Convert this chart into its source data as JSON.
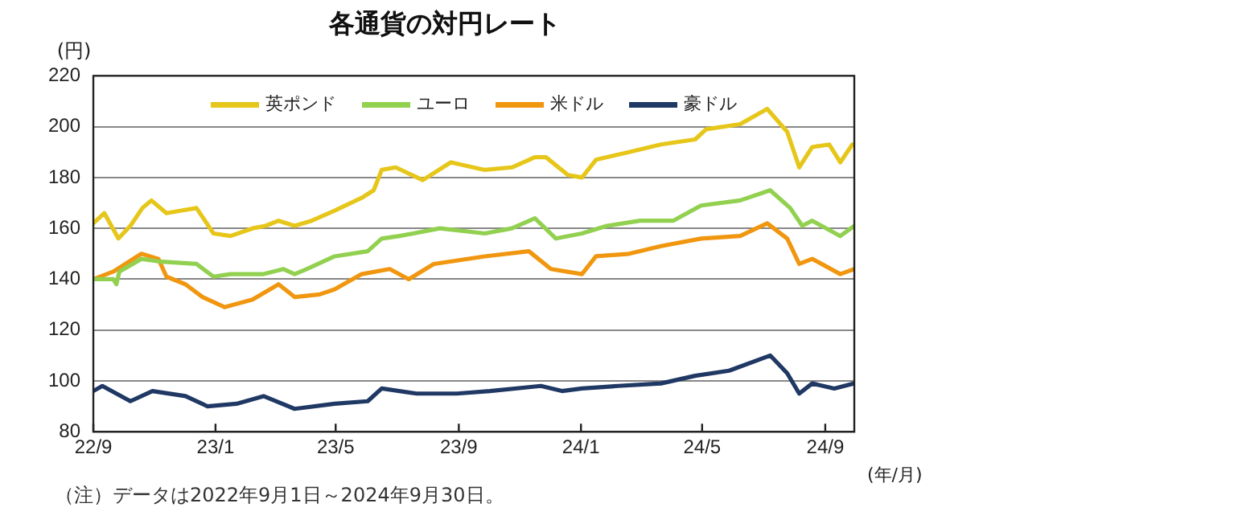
{
  "chart_data": {
    "type": "line",
    "title": "各通貨の対円レート",
    "ylabel": "(円)",
    "xlabel": "(年/月)",
    "annotations": [
      "（注）データは2022年9月1日～2024年9月30日。"
    ],
    "xlim": [
      "2022-09-01",
      "2024-09-30"
    ],
    "xticks": [
      {
        "value": "2022-09-01",
        "label": "22/9"
      },
      {
        "value": "2023-01-01",
        "label": "23/1"
      },
      {
        "value": "2023-05-01",
        "label": "23/5"
      },
      {
        "value": "2023-09-01",
        "label": "23/9"
      },
      {
        "value": "2024-01-01",
        "label": "24/1"
      },
      {
        "value": "2024-05-01",
        "label": "24/5"
      },
      {
        "value": "2024-09-01",
        "label": "24/9"
      }
    ],
    "ylim": [
      80,
      220
    ],
    "yticks": [
      80,
      100,
      120,
      140,
      160,
      180,
      200,
      220
    ],
    "grid": "y",
    "legend": "top",
    "line_style": "solid",
    "marker": "none",
    "series": [
      {
        "name": "英ポンド",
        "color": "#e6c619",
        "x": [
          "2022-09-01",
          "2022-09-12",
          "2022-09-26",
          "2022-10-08",
          "2022-10-20",
          "2022-10-29",
          "2022-11-13",
          "2022-11-28",
          "2022-12-13",
          "2022-12-30",
          "2023-01-16",
          "2023-02-07",
          "2023-02-20",
          "2023-03-05",
          "2023-03-21",
          "2023-04-07",
          "2023-04-30",
          "2023-05-27",
          "2023-06-08",
          "2023-06-16",
          "2023-06-30",
          "2023-07-27",
          "2023-08-24",
          "2023-09-27",
          "2023-10-24",
          "2023-11-16",
          "2023-11-27",
          "2023-12-19",
          "2024-01-02",
          "2024-01-16",
          "2024-02-18",
          "2024-03-21",
          "2024-04-24",
          "2024-05-05",
          "2024-06-08",
          "2024-07-05",
          "2024-07-25",
          "2024-08-06",
          "2024-08-19",
          "2024-09-05",
          "2024-09-16",
          "2024-09-28",
          "2024-09-30"
        ],
        "values": [
          162,
          166,
          156,
          161,
          168,
          171,
          166,
          167,
          168,
          158,
          157,
          160,
          161,
          163,
          161,
          163,
          167,
          172,
          175,
          183,
          184,
          179,
          186,
          183,
          184,
          188,
          188,
          181,
          180,
          187,
          190,
          193,
          195,
          199,
          201,
          207,
          198,
          184,
          192,
          193,
          186,
          193,
          193
        ]
      },
      {
        "name": "ユーロ",
        "color": "#92d050",
        "x": [
          "2022-09-01",
          "2022-09-21",
          "2022-09-24",
          "2022-09-27",
          "2022-10-19",
          "2022-11-05",
          "2022-12-13",
          "2022-12-30",
          "2023-01-16",
          "2023-02-18",
          "2023-03-10",
          "2023-03-21",
          "2023-04-02",
          "2023-04-30",
          "2023-06-02",
          "2023-06-16",
          "2023-07-04",
          "2023-08-13",
          "2023-09-27",
          "2023-10-24",
          "2023-11-16",
          "2023-12-07",
          "2024-01-02",
          "2024-01-27",
          "2024-02-29",
          "2024-04-02",
          "2024-04-30",
          "2024-06-08",
          "2024-07-08",
          "2024-07-28",
          "2024-08-09",
          "2024-08-19",
          "2024-09-16",
          "2024-09-30"
        ],
        "values": [
          140,
          140,
          138,
          143,
          148,
          147,
          146,
          141,
          142,
          142,
          144,
          142,
          144,
          149,
          151,
          156,
          157,
          160,
          158,
          160,
          164,
          156,
          158,
          161,
          163,
          163,
          169,
          171,
          175,
          168,
          161,
          163,
          157,
          161
        ]
      },
      {
        "name": "米ドル",
        "color": "#f0960f",
        "x": [
          "2022-09-01",
          "2022-09-21",
          "2022-10-19",
          "2022-11-05",
          "2022-11-13",
          "2022-12-02",
          "2022-12-19",
          "2023-01-10",
          "2023-02-07",
          "2023-03-05",
          "2023-03-21",
          "2023-04-15",
          "2023-04-30",
          "2023-05-27",
          "2023-06-24",
          "2023-07-13",
          "2023-08-07",
          "2023-09-27",
          "2023-11-10",
          "2023-12-02",
          "2024-01-02",
          "2024-01-16",
          "2024-02-18",
          "2024-03-21",
          "2024-04-30",
          "2024-06-08",
          "2024-07-05",
          "2024-07-25",
          "2024-08-06",
          "2024-08-19",
          "2024-09-16",
          "2024-09-30"
        ],
        "values": [
          140,
          143,
          150,
          148,
          141,
          138,
          133,
          129,
          132,
          138,
          133,
          134,
          136,
          142,
          144,
          140,
          146,
          149,
          151,
          144,
          142,
          149,
          150,
          153,
          156,
          157,
          162,
          156,
          146,
          148,
          142,
          144
        ]
      },
      {
        "name": "豪ドル",
        "color": "#1f3864",
        "x": [
          "2022-09-01",
          "2022-09-10",
          "2022-10-08",
          "2022-10-30",
          "2022-12-02",
          "2022-12-24",
          "2023-01-22",
          "2023-02-18",
          "2023-03-21",
          "2023-04-30",
          "2023-06-02",
          "2023-06-16",
          "2023-07-21",
          "2023-08-30",
          "2023-10-02",
          "2023-11-22",
          "2023-12-13",
          "2024-01-02",
          "2024-02-07",
          "2024-03-21",
          "2024-04-24",
          "2024-05-28",
          "2024-07-08",
          "2024-07-25",
          "2024-08-06",
          "2024-08-19",
          "2024-09-10",
          "2024-09-30"
        ],
        "values": [
          96,
          98,
          92,
          96,
          94,
          90,
          91,
          94,
          89,
          91,
          92,
          97,
          95,
          95,
          96,
          98,
          96,
          97,
          98,
          99,
          102,
          104,
          110,
          103,
          95,
          99,
          97,
          99
        ]
      }
    ]
  }
}
